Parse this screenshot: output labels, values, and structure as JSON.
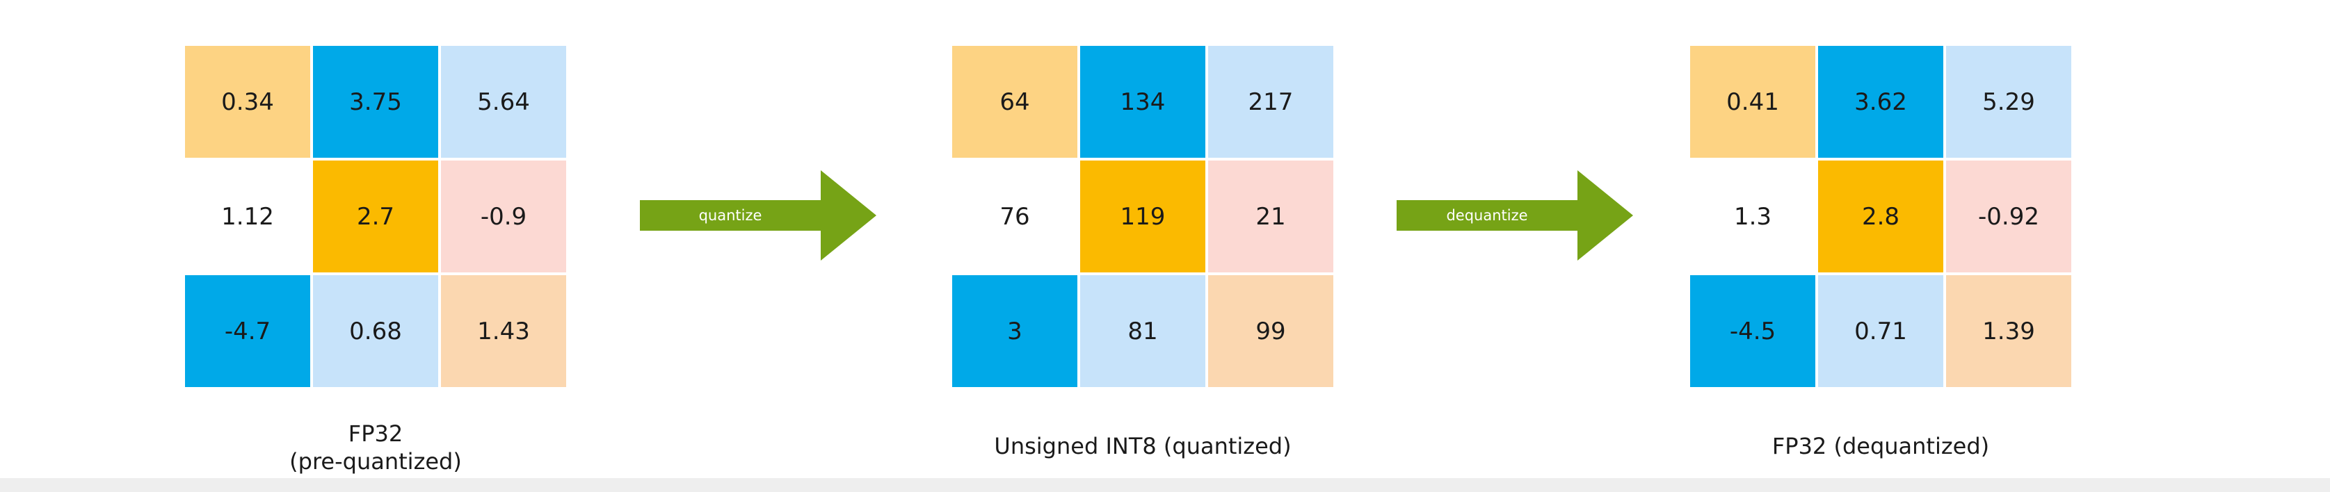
{
  "colors": {
    "orange": "#FDD383",
    "blue": "#00A9E8",
    "lightblue": "#C7E3FA",
    "white": "#FFFFFF",
    "gold": "#FBBA00",
    "pink": "#FCD9D3",
    "peach": "#FBD7B0",
    "arrow": "#76A316"
  },
  "cell_colors": [
    "orange",
    "blue",
    "lightblue",
    "white",
    "gold",
    "pink",
    "blue",
    "lightblue",
    "peach"
  ],
  "matrices": [
    {
      "values": [
        "0.34",
        "3.75",
        "5.64",
        "1.12",
        "2.7",
        "-0.9",
        "-4.7",
        "0.68",
        "1.43"
      ],
      "caption": "FP32",
      "caption_line2": "(pre-quantized)"
    },
    {
      "values": [
        "64",
        "134",
        "217",
        "76",
        "119",
        "21",
        "3",
        "81",
        "99"
      ],
      "caption": "Unsigned INT8 (quantized)"
    },
    {
      "values": [
        "0.41",
        "3.62",
        "5.29",
        "1.3",
        "2.8",
        "-0.92",
        "-4.5",
        "0.71",
        "1.39"
      ],
      "caption": "FP32 (dequantized)"
    }
  ],
  "arrows": [
    {
      "label": "quantize",
      "icon": "right-arrow-icon"
    },
    {
      "label": "dequantize",
      "icon": "right-arrow-icon"
    }
  ]
}
